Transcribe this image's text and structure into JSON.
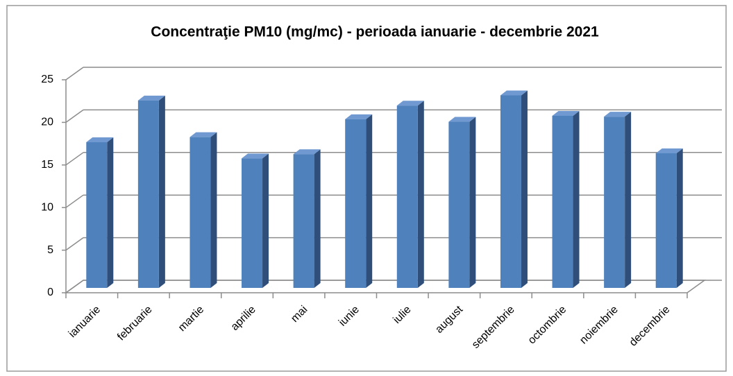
{
  "chart_data": {
    "type": "bar3d",
    "title": "Concentraţie PM10 (mg/mc) - perioada ianuarie - decembrie 2021",
    "categories": [
      "ianuarie",
      "februarie",
      "martie",
      "aprilie",
      "mai",
      "iunie",
      "iulie",
      "august",
      "septembrie",
      "octombrie",
      "noiembrie",
      "decembrie"
    ],
    "values": [
      17.1,
      22,
      17.7,
      15.2,
      15.7,
      19.8,
      21.4,
      19.5,
      22.6,
      20.2,
      20.1,
      15.8
    ],
    "color": "#4f81bd",
    "ylim": [
      0,
      25
    ],
    "yticks": [
      0,
      5,
      10,
      15,
      20,
      25
    ],
    "grid": true
  }
}
